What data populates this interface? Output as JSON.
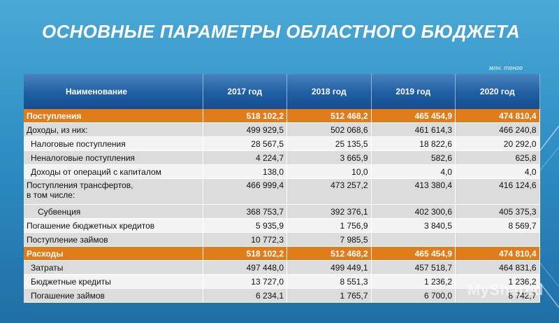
{
  "title": "ОСНОВНЫЕ ПАРАМЕТРЫ ОБЛАСТНОГО БЮДЖЕТА",
  "units": "млн. тенге",
  "watermark": "MyShared",
  "table": {
    "headers": [
      "Наименование",
      "2017 год",
      "2018 год",
      "2019 год",
      "2020 год"
    ],
    "rows": [
      {
        "label": "Поступления",
        "values": [
          "518 102,2",
          "512 468,2",
          "465 454,9",
          "474 810,4"
        ]
      },
      {
        "label": "Доходы, из них:",
        "values": [
          "499 929,5",
          "502 068,6",
          "461 614,3",
          "466 240,8"
        ]
      },
      {
        "label": "Налоговые поступления",
        "values": [
          "28 567,5",
          "25 135,5",
          "18 822,6",
          "20 292,0"
        ]
      },
      {
        "label": "Неналоговые поступления",
        "values": [
          "4 224,7",
          "3 665,9",
          "582,6",
          "625,8"
        ]
      },
      {
        "label": "Доходы от операций с капиталом",
        "values": [
          "138,0",
          "10,0",
          "4,0",
          "4,0"
        ]
      },
      {
        "label_line1": "Поступления трансфертов,",
        "label_line2": "в том числе:",
        "values": [
          "466 999,4",
          "473 257,2",
          "413 380,4",
          "416 124,6"
        ]
      },
      {
        "label": "Субвенция",
        "values": [
          "368 753,7",
          "392 376,1",
          "402 300,6",
          "405 375,3"
        ]
      },
      {
        "label": "Погашение бюджетных кредитов",
        "values": [
          "5 935,9",
          "1 756,9",
          "3 840,5",
          "8 569,7"
        ]
      },
      {
        "label": "Поступление займов",
        "values": [
          "10 772,3",
          "7 985,5",
          "",
          ""
        ]
      },
      {
        "label": "Расходы",
        "values": [
          "518 102,2",
          "512 468,2",
          "465 454,9",
          "474 810,4"
        ]
      },
      {
        "label": "Затраты",
        "values": [
          "497 448,0",
          "499 449,1",
          "457 518,7",
          "464 831,6"
        ]
      },
      {
        "label": "Бюджетные кредиты",
        "values": [
          "13 727,0",
          "8 551,3",
          "1 236,2",
          "1 236,2"
        ]
      },
      {
        "label": "Погашение займов",
        "values": [
          "6 234,1",
          "1 765,7",
          "6 700,0",
          "8 742,7"
        ]
      }
    ]
  }
}
